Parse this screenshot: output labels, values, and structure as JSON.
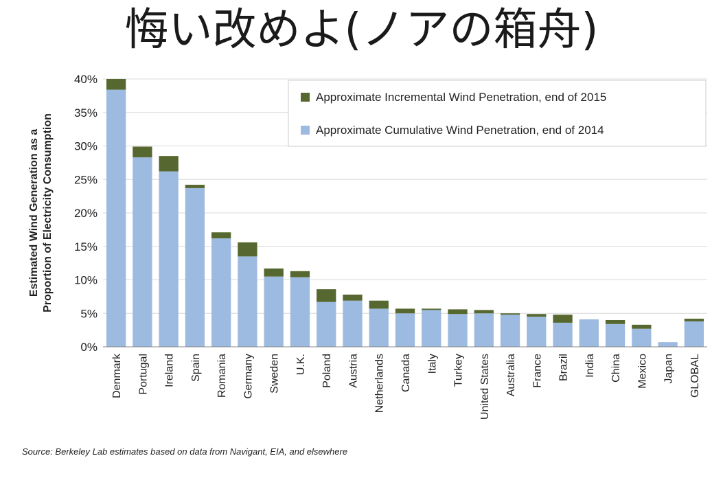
{
  "title": "悔い改めよ(ノアの箱舟)",
  "source": "Source: Berkeley Lab estimates based on data from Navigant, EIA, and elsewhere",
  "colors": {
    "cumulative": "#9dbbe0",
    "incremental": "#56682f",
    "grid": "#d9d9d9",
    "axis": "#888888"
  },
  "chart_data": {
    "type": "bar",
    "stacked": true,
    "ylabel": "Estimated Wind Generation as a Proportion of Electricity Consumption",
    "ylim": [
      0,
      40
    ],
    "yticks": [
      "0%",
      "5%",
      "10%",
      "15%",
      "20%",
      "25%",
      "30%",
      "35%",
      "40%"
    ],
    "grid": true,
    "legend_position": "top-right",
    "categories": [
      "Denmark",
      "Portugal",
      "Ireland",
      "Spain",
      "Romania",
      "Germany",
      "Sweden",
      "U.K.",
      "Poland",
      "Austria",
      "Netherlands",
      "Canada",
      "Italy",
      "Turkey",
      "United States",
      "Australia",
      "France",
      "Brazil",
      "India",
      "China",
      "Mexico",
      "Japan",
      "GLOBAL"
    ],
    "series": [
      {
        "name": "Approximate Cumulative Wind Penetration, end of 2014",
        "values": [
          38.4,
          28.3,
          26.2,
          23.7,
          16.2,
          13.5,
          10.5,
          10.4,
          6.7,
          6.9,
          5.7,
          5.0,
          5.5,
          4.9,
          5.0,
          4.8,
          4.5,
          3.6,
          4.1,
          3.4,
          2.7,
          0.7,
          3.8
        ]
      },
      {
        "name": "Approximate Incremental Wind Penetration, end of 2015",
        "values": [
          1.6,
          1.6,
          2.3,
          0.5,
          0.9,
          2.1,
          1.2,
          0.9,
          1.9,
          0.9,
          1.2,
          0.7,
          0.2,
          0.7,
          0.5,
          0.2,
          0.4,
          1.2,
          0.0,
          0.6,
          0.6,
          0.0,
          0.4
        ]
      }
    ],
    "legend_order": [
      1,
      0
    ]
  }
}
